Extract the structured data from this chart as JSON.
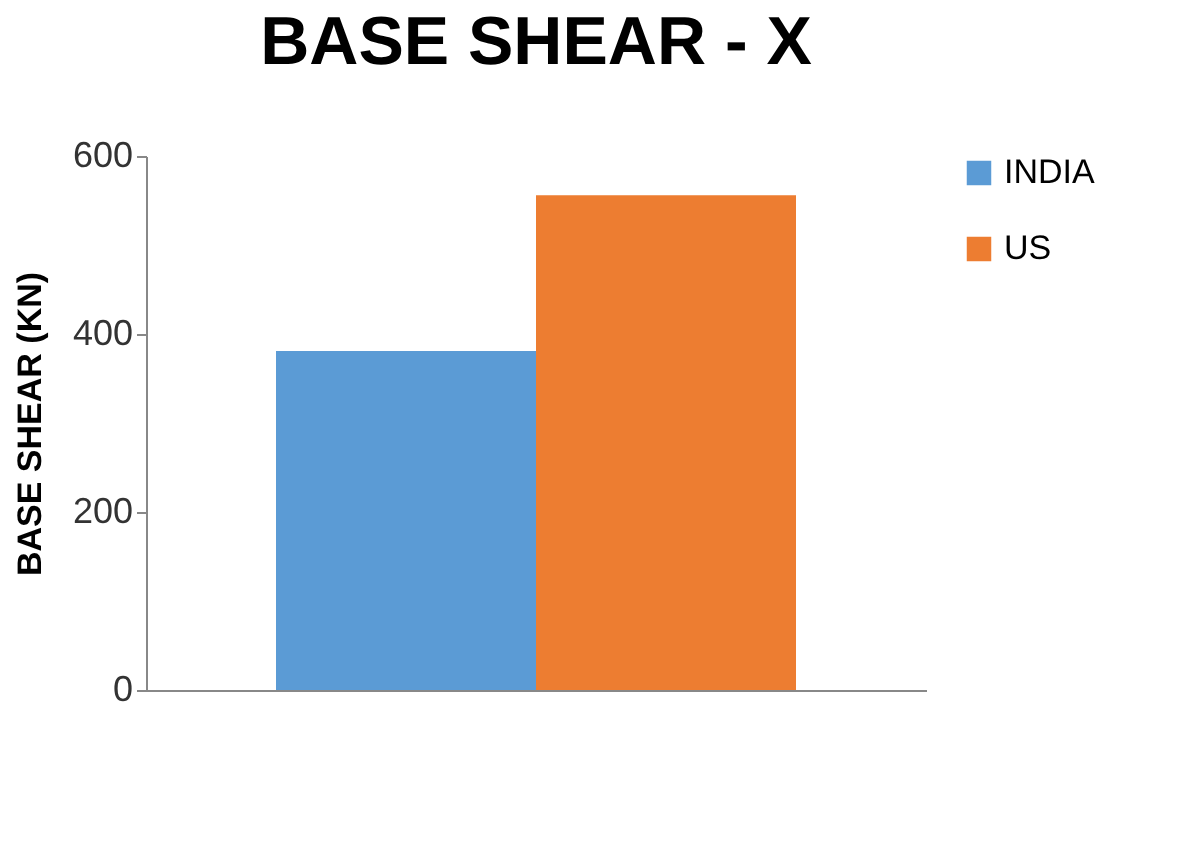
{
  "chart_data": {
    "type": "bar",
    "title": "BASE SHEAR - X",
    "ylabel": "BASE SHEAR (KN)",
    "categories": [
      null
    ],
    "series": [
      {
        "name": "INDIA",
        "color": "#5b9bd5",
        "values": [
          381
        ]
      },
      {
        "name": "US",
        "color": "#ed7d31",
        "values": [
          556
        ]
      }
    ],
    "ylim": [
      0,
      600
    ],
    "yticks": [
      0,
      200,
      400,
      600
    ],
    "grid": false,
    "legend": "right"
  }
}
